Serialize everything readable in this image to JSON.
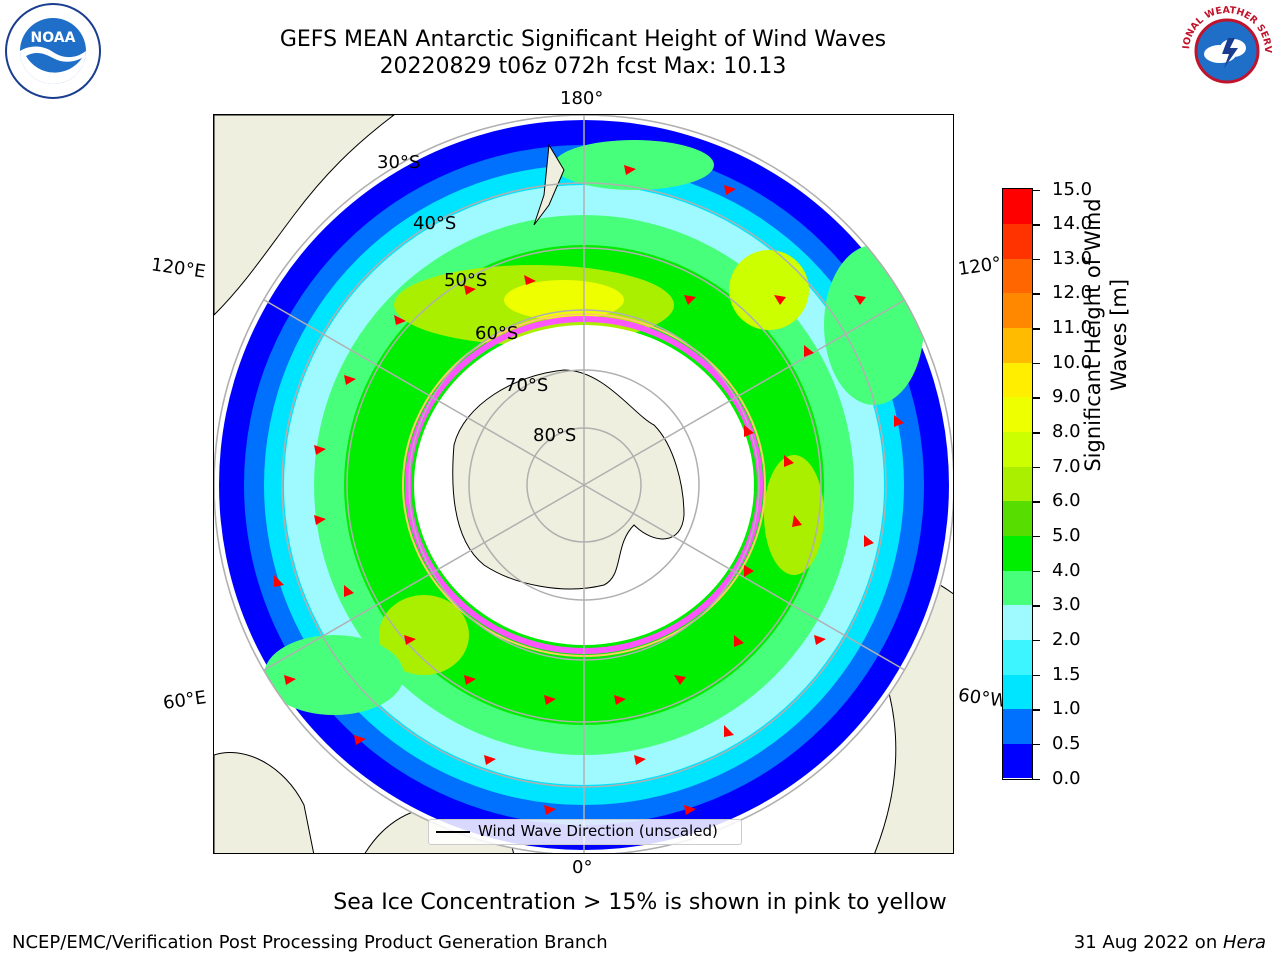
{
  "title": {
    "line1": "GEFS MEAN Antarctic Significant Height of Wind Waves",
    "line2": "20220829 t06z 072h fcst   Max: 10.13"
  },
  "map": {
    "projection": "south-polar-stereographic",
    "longitude_labels": [
      "180°",
      "120°E",
      "120°",
      "60°E",
      "60°W",
      "0°"
    ],
    "latitude_labels": [
      "30°S",
      "40°S",
      "50°S",
      "60°S",
      "70°S",
      "80°S"
    ],
    "colors": {
      "land": "#efefdf",
      "ocean_no_data": "#ffffff",
      "gridline": "#b0b0b0",
      "vector": "#ff0000",
      "sea_ice": "#ff55ff"
    },
    "legend": "Wind Wave Direction (unscaled)"
  },
  "colorbar": {
    "label": "Significant Height of Wind Waves [m]",
    "ticks": [
      "0.0",
      "0.5",
      "1.0",
      "1.5",
      "2.0",
      "3.0",
      "4.0",
      "5.0",
      "6.0",
      "7.0",
      "8.0",
      "9.0",
      "10.0",
      "11.0",
      "12.0",
      "13.0",
      "14.0",
      "15.0"
    ],
    "colors": [
      "#0000ff",
      "#0070ff",
      "#00e5ff",
      "#3cf5ff",
      "#9ffaff",
      "#48ff7c",
      "#00ee00",
      "#58dd00",
      "#aaee00",
      "#ccff00",
      "#eeff00",
      "#ffee00",
      "#ffbb00",
      "#ff8800",
      "#ff6600",
      "#ff3300",
      "#ff0000"
    ]
  },
  "footnote": "Sea Ice Concentration > 15% is shown in pink to yellow",
  "credit": "NCEP/EMC/Verification Post Processing Product Generation Branch",
  "datestamp": {
    "date": "31 Aug 2022 on ",
    "host": "Hera"
  },
  "logos": {
    "left": "NOAA",
    "right": "NATIONAL WEATHER SERVICE"
  }
}
